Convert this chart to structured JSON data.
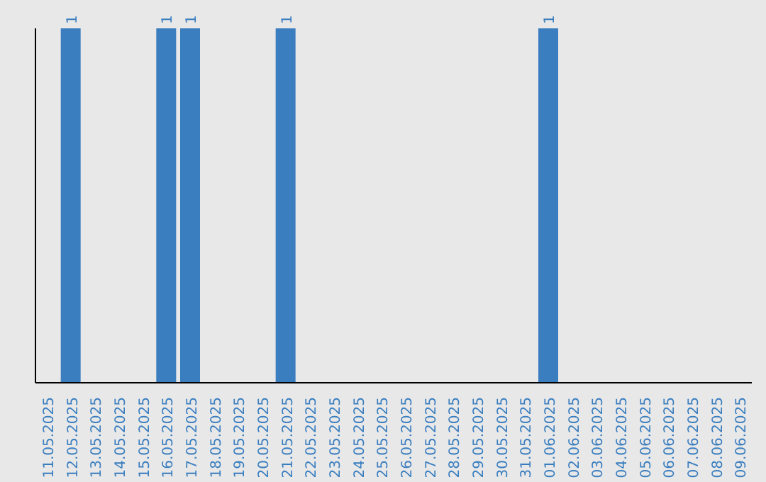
{
  "chart_data": {
    "type": "bar",
    "categories": [
      "11.05.2025",
      "12.05.2025",
      "13.05.2025",
      "14.05.2025",
      "15.05.2025",
      "16.05.2025",
      "17.05.2025",
      "18.05.2025",
      "19.05.2025",
      "20.05.2025",
      "21.05.2025",
      "22.05.2025",
      "23.05.2025",
      "24.05.2025",
      "25.05.2025",
      "26.05.2025",
      "27.05.2025",
      "28.05.2025",
      "29.05.2025",
      "30.05.2025",
      "31.05.2025",
      "01.06.2025",
      "02.06.2025",
      "03.06.2025",
      "04.06.2025",
      "05.06.2025",
      "06.06.2025",
      "07.06.2025",
      "08.06.2025",
      "09.06.2025"
    ],
    "values": [
      0,
      1,
      0,
      0,
      0,
      1,
      1,
      0,
      0,
      0,
      1,
      0,
      0,
      0,
      0,
      0,
      0,
      0,
      0,
      0,
      0,
      1,
      0,
      0,
      0,
      0,
      0,
      0,
      0,
      0
    ],
    "value_labels": [
      null,
      "1",
      null,
      null,
      null,
      "1",
      "1",
      null,
      null,
      null,
      "1",
      null,
      null,
      null,
      null,
      null,
      null,
      null,
      null,
      null,
      null,
      "1",
      null,
      null,
      null,
      null,
      null,
      null,
      null,
      null
    ],
    "color": "#3a7ebf",
    "grid": false,
    "legend": false
  }
}
